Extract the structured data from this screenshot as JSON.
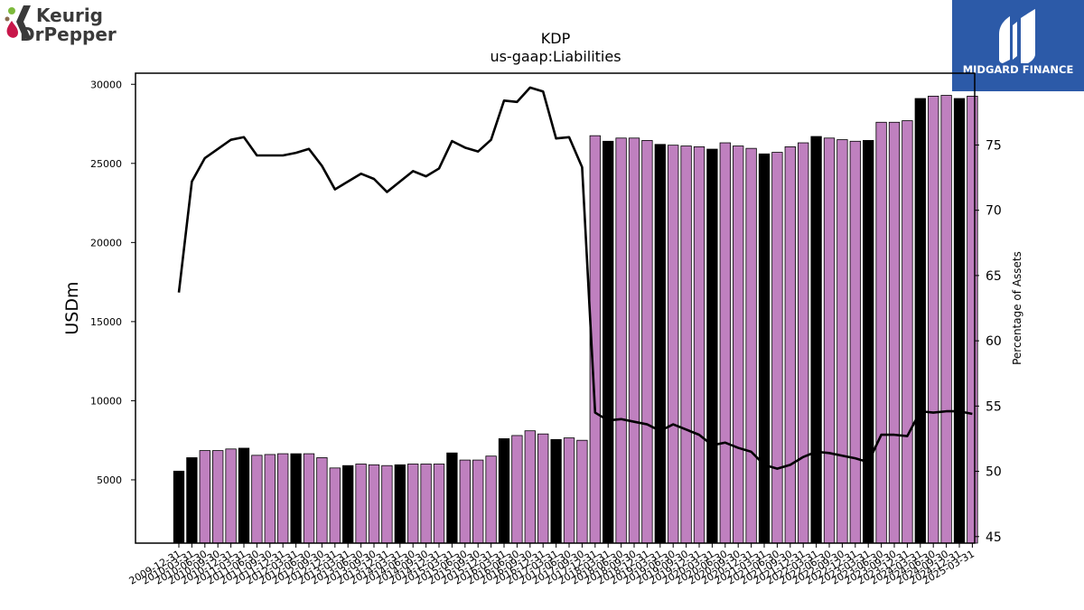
{
  "logos": {
    "left": {
      "line1": "Keurig",
      "line2": "DrPepper"
    },
    "right": {
      "text": "MIDGARD FINANCE"
    }
  },
  "colors": {
    "bar_regular": "#bf80bf",
    "bar_highlight": "#000000",
    "line": "#000000",
    "brand_blue": "#2c5aa8",
    "keurig_dark": "#3a3a3a",
    "keurig_red": "#c8174a",
    "keurig_green": "#7dba3c"
  },
  "chart_data": {
    "type": "bar",
    "title": "KDP",
    "subtitle": "us-gaap:Liabilities",
    "ylabel": "USDm",
    "y2label": "Percentage of Assets",
    "ylim": [
      1000,
      30700
    ],
    "y2lim": [
      44.5,
      80.5
    ],
    "yticks": [
      5000,
      10000,
      15000,
      20000,
      25000,
      30000
    ],
    "y2ticks": [
      45,
      50,
      55,
      60,
      65,
      70,
      75
    ],
    "categories": [
      "2009-12-31",
      "2010-03-31",
      "2010-06-30",
      "2010-09-30",
      "2010-12-31",
      "2011-03-31",
      "2011-06-30",
      "2011-09-30",
      "2011-12-31",
      "2012-03-31",
      "2012-06-30",
      "2012-09-30",
      "2012-12-31",
      "2013-03-31",
      "2013-06-30",
      "2013-09-30",
      "2013-12-31",
      "2014-03-31",
      "2014-06-30",
      "2014-09-30",
      "2014-12-31",
      "2015-03-31",
      "2015-06-30",
      "2015-09-30",
      "2015-12-31",
      "2016-03-31",
      "2016-06-30",
      "2016-09-30",
      "2016-12-31",
      "2017-03-31",
      "2017-06-30",
      "2017-09-30",
      "2017-12-31",
      "2018-03-31",
      "2018-06-30",
      "2018-09-30",
      "2018-12-31",
      "2019-03-31",
      "2019-06-30",
      "2019-09-30",
      "2019-12-31",
      "2020-03-31",
      "2020-06-30",
      "2020-09-30",
      "2020-12-31",
      "2021-03-31",
      "2021-06-30",
      "2021-09-30",
      "2021-12-31",
      "2022-03-31",
      "2022-06-30",
      "2022-09-30",
      "2022-12-31",
      "2023-03-31",
      "2023-06-30",
      "2023-09-30",
      "2023-12-31",
      "2024-03-31",
      "2024-06-30",
      "2024-09-30",
      "2024-12-31",
      "2025-03-31"
    ],
    "highlight": [
      true,
      true,
      false,
      false,
      false,
      true,
      false,
      false,
      false,
      true,
      false,
      false,
      false,
      true,
      false,
      false,
      false,
      true,
      false,
      false,
      false,
      true,
      false,
      false,
      false,
      true,
      false,
      false,
      false,
      true,
      false,
      false,
      false,
      true,
      false,
      false,
      false,
      true,
      false,
      false,
      false,
      true,
      false,
      false,
      false,
      true,
      false,
      false,
      false,
      true,
      false,
      false,
      false,
      true,
      false,
      false,
      false,
      true,
      false,
      false,
      true,
      false
    ],
    "series": [
      {
        "values": [
          5550,
          6400,
          6850,
          6850,
          6950,
          7000,
          6550,
          6600,
          6650,
          6650,
          6650,
          6400,
          5750,
          5900,
          6000,
          5950,
          5900,
          5950,
          6000,
          6000,
          6000,
          6700,
          6250,
          6250,
          6500,
          7600,
          7800,
          8100,
          7900,
          7550,
          7650,
          7500,
          26750,
          26400,
          26600,
          26600,
          26450,
          26200,
          26150,
          26100,
          26050,
          25900,
          26300,
          26100,
          25950,
          25600,
          25700,
          26050,
          26300,
          26700,
          26600,
          26500,
          26400,
          26450,
          27600,
          27600,
          27700,
          29100,
          29250,
          29300,
          29100,
          29250
        ]
      },
      {
        "axis": "right",
        "values": [
          63.7,
          72.2,
          74.0,
          74.7,
          75.4,
          75.6,
          74.2,
          74.2,
          74.2,
          74.4,
          74.7,
          73.4,
          71.6,
          72.2,
          72.8,
          72.4,
          71.4,
          72.2,
          73.0,
          72.6,
          73.2,
          75.3,
          74.8,
          74.5,
          75.4,
          78.4,
          78.3,
          79.4,
          79.1,
          75.5,
          75.6,
          73.3,
          54.5,
          53.9,
          54.0,
          53.8,
          53.6,
          53.1,
          53.6,
          53.2,
          52.8,
          52.0,
          52.2,
          51.8,
          51.5,
          50.5,
          50.2,
          50.5,
          51.1,
          51.5,
          51.4,
          51.2,
          51.0,
          50.7,
          52.8,
          52.8,
          52.7,
          54.6,
          54.5,
          54.6,
          54.6,
          54.4
        ]
      }
    ]
  }
}
